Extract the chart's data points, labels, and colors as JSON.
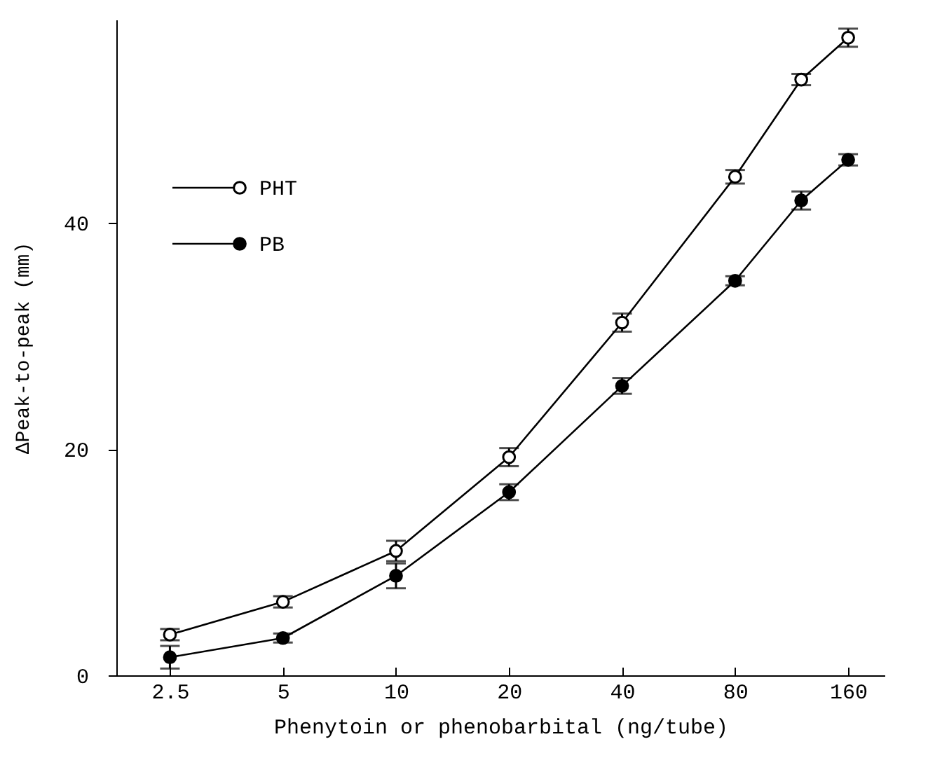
{
  "chart_data": {
    "type": "line",
    "xlabel": "Phenytoin or phenobarbital (ng/tube)",
    "ylabel": "ΔPeak-to-peak (mm)",
    "x": [
      2.5,
      5,
      10,
      20,
      40,
      80,
      120,
      160
    ],
    "series": [
      {
        "name": "PHT",
        "color": "#000000",
        "values": [
          3.6,
          6.5,
          11.0,
          19.3,
          31.2,
          44.1,
          52.7,
          56.4
        ],
        "errors": [
          0.5,
          0.5,
          0.9,
          0.8,
          0.8,
          0.6,
          0.5,
          0.8
        ]
      },
      {
        "name": "PB",
        "color": "#000000",
        "values": [
          1.6,
          3.3,
          8.8,
          16.2,
          25.6,
          34.9,
          42.0,
          45.6
        ],
        "errors": [
          1.0,
          0.4,
          1.1,
          0.7,
          0.7,
          0.4,
          0.8,
          0.5
        ]
      }
    ],
    "log": "x",
    "xlim": [
      1.8,
      200
    ],
    "xticks": [
      2.5,
      5,
      10,
      20,
      40,
      80,
      160
    ],
    "ylim": [
      0,
      58
    ],
    "yticks": [
      0,
      20,
      40
    ],
    "legend": "top left",
    "marker": "circle",
    "grid": false
  }
}
